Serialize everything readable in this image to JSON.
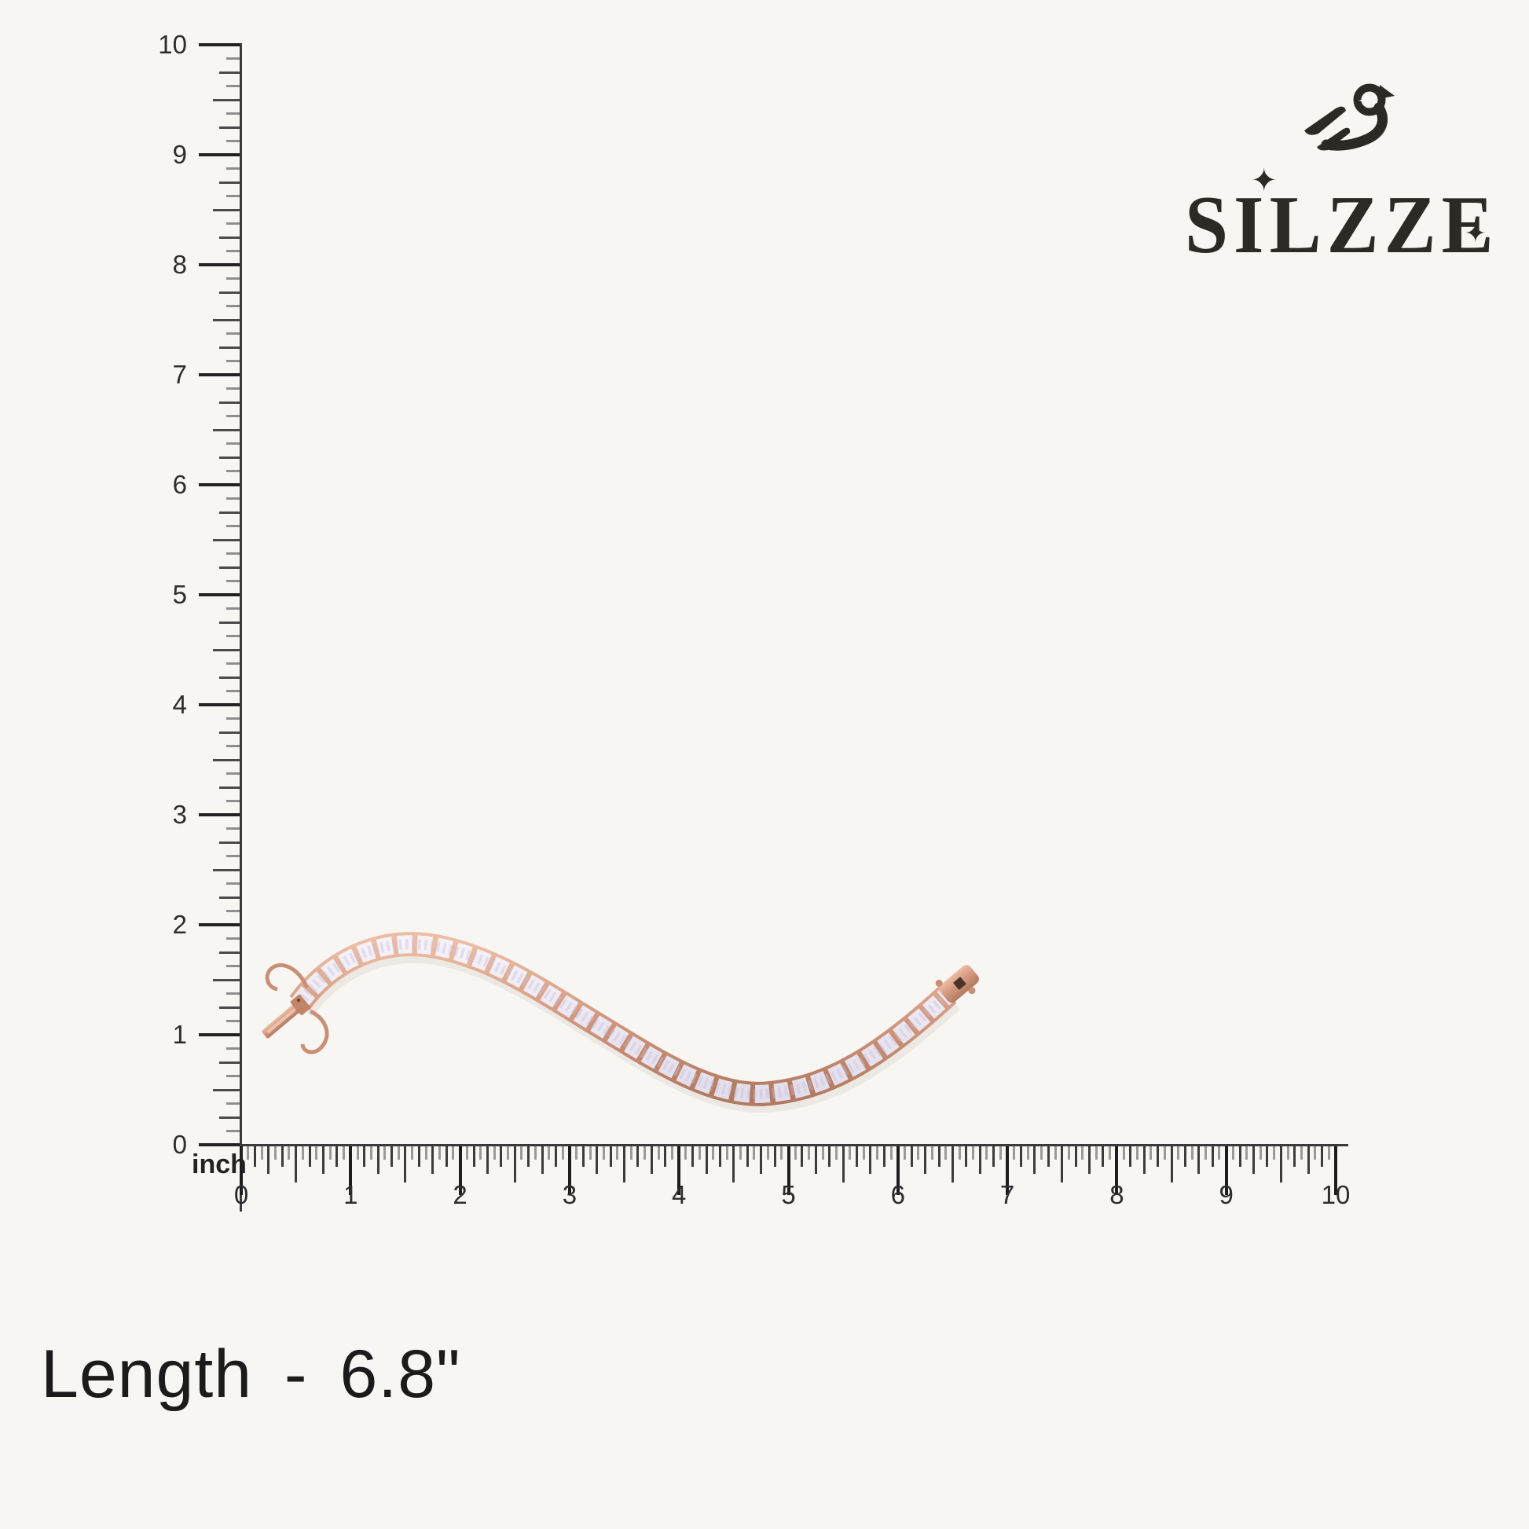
{
  "brand": {
    "wordmark": "SILZZE",
    "sparkle_glyph": "✦",
    "logo_color": "#2b2a25"
  },
  "rulers": {
    "vertical": {
      "labels": [
        "10",
        "9",
        "8",
        "7",
        "6",
        "5",
        "4",
        "3",
        "2",
        "1",
        "0"
      ],
      "subdivisions_per_inch": 8
    },
    "horizontal": {
      "unit_label": "inch",
      "labels": [
        "0",
        "1",
        "2",
        "3",
        "4",
        "5",
        "6",
        "7",
        "8",
        "9",
        "10"
      ],
      "subdivisions_per_inch": 16
    }
  },
  "product": {
    "kind": "rose gold tennis bracelet with square cut stones",
    "metal_color": "#d2977e",
    "stone_color": "#eae6f0"
  },
  "caption": {
    "text": "Length - 6.8\""
  }
}
